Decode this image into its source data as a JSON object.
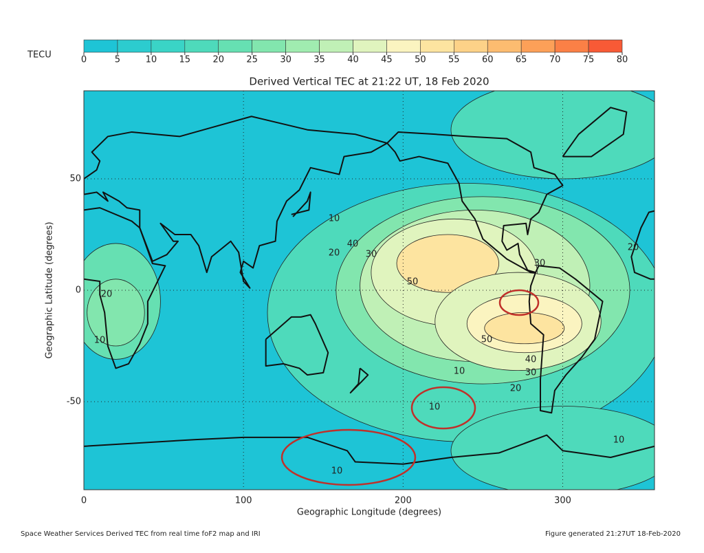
{
  "colorbar": {
    "label": "TECU",
    "ticks": [
      0,
      5,
      10,
      15,
      20,
      25,
      30,
      35,
      40,
      45,
      50,
      55,
      60,
      65,
      70,
      75,
      80
    ],
    "colors": [
      "#1ec4d6",
      "#2ccccf",
      "#3ad4c6",
      "#4edabb",
      "#66e0b2",
      "#82e6ae",
      "#a0ecb0",
      "#c0f0b6",
      "#e0f4be",
      "#fbf4c0",
      "#fde4a0",
      "#fdd288",
      "#fcbc70",
      "#fca058",
      "#fb8046",
      "#f85a36"
    ]
  },
  "chart_data": {
    "type": "map",
    "title": "Derived Vertical TEC at 21:22 UT, 18 Feb 2020",
    "x_label": "Geographic Longitude (degrees)",
    "y_label": "Geographic Latitude (degrees)",
    "xlim": [
      0,
      357.5
    ],
    "ylim": [
      -89.5,
      89.5
    ],
    "xticks": [
      0,
      100,
      200,
      300
    ],
    "yticks": [
      -50,
      0,
      50
    ],
    "grid": true,
    "contour_labels": [
      "10",
      "20",
      "30",
      "40",
      "50",
      "50",
      "40",
      "30",
      "20",
      "10",
      "20",
      "10",
      "30",
      "20",
      "10",
      "10",
      "10"
    ]
  },
  "footer": {
    "left": "Space Weather Services Derived TEC from real time foF2 map and IRI",
    "right": "Figure generated 21:27UT 18-Feb-2020"
  }
}
